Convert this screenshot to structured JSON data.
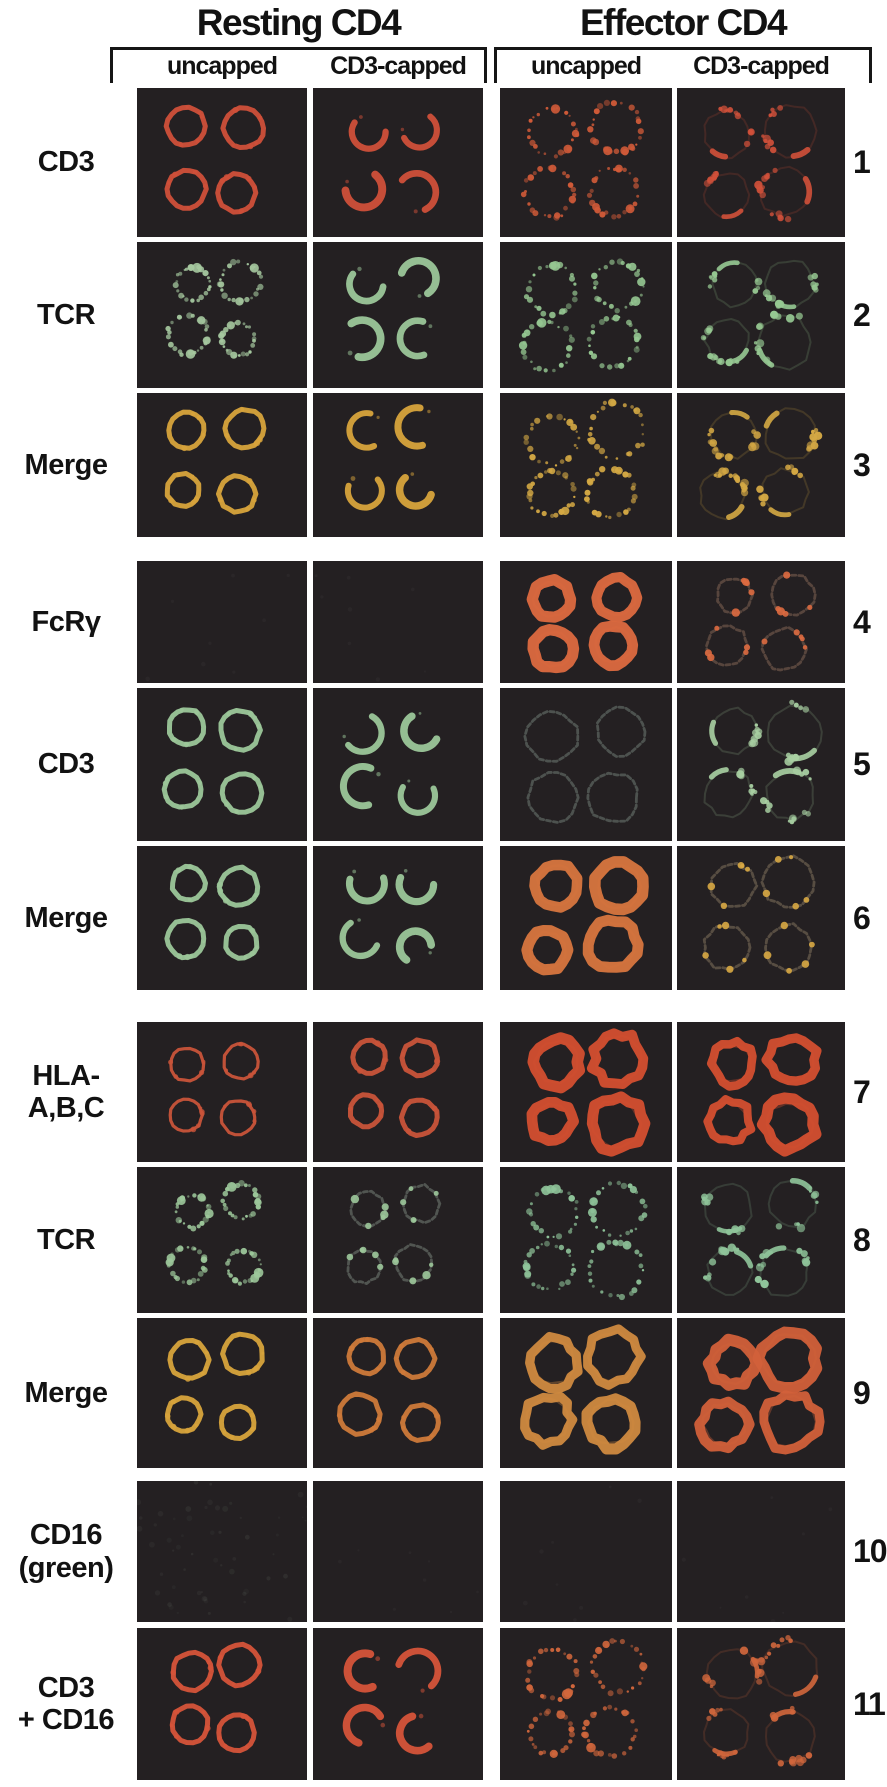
{
  "figure": {
    "groups": [
      {
        "title": "Resting CD4"
      },
      {
        "title": "Effector CD4"
      }
    ],
    "column_headers": [
      "uncapped",
      "CD3-capped",
      "uncapped",
      "CD3-capped"
    ],
    "panel_background": "#242022",
    "channel_colors": {
      "red": "#d0503a",
      "green": "#9cc79a",
      "merge_yellow": "#d8a43c",
      "orange": "#dd6a40"
    },
    "rows": [
      {
        "label": "CD3",
        "number": "1",
        "panels": [
          {
            "pattern": "rings",
            "color": "#d0503a"
          },
          {
            "pattern": "crescents",
            "color": "#d0503a"
          },
          {
            "pattern": "dotted-rings",
            "color": "#d05a38",
            "size": "large"
          },
          {
            "pattern": "patches",
            "color": "#d0503a",
            "size": "large"
          }
        ]
      },
      {
        "label": "TCR",
        "number": "2",
        "panels": [
          {
            "pattern": "dotted-rings",
            "color": "#a6c9a0"
          },
          {
            "pattern": "crescents",
            "color": "#9cc79a"
          },
          {
            "pattern": "dotted-rings",
            "color": "#96c892",
            "size": "large"
          },
          {
            "pattern": "patches",
            "color": "#96c892",
            "size": "large"
          }
        ]
      },
      {
        "label": "Merge",
        "number": "3",
        "panels": [
          {
            "pattern": "rings",
            "color": "#d8a43c"
          },
          {
            "pattern": "crescents",
            "color": "#d8a43c"
          },
          {
            "pattern": "dotted-rings",
            "color": "#d4a844",
            "size": "large"
          },
          {
            "pattern": "patches",
            "color": "#d4a844",
            "size": "large"
          }
        ]
      },
      {
        "label": "FcRγ",
        "number": "4",
        "panels": [
          {
            "pattern": "blank"
          },
          {
            "pattern": "blank"
          },
          {
            "pattern": "thick-rings",
            "color": "#dd6a40",
            "size": "large"
          },
          {
            "pattern": "dim-rings",
            "color": "#8a6a58",
            "accent": "#dd6a40",
            "size": "large"
          }
        ]
      },
      {
        "label": "CD3",
        "number": "5",
        "panels": [
          {
            "pattern": "rings",
            "color": "#9cc79a"
          },
          {
            "pattern": "crescents",
            "color": "#9cc79a"
          },
          {
            "pattern": "dim-rings",
            "color": "#75837b",
            "size": "large"
          },
          {
            "pattern": "patches",
            "color": "#a8cfa2",
            "size": "large"
          }
        ]
      },
      {
        "label": "Merge",
        "number": "6",
        "panels": [
          {
            "pattern": "rings",
            "color": "#9cc79a"
          },
          {
            "pattern": "crescents",
            "color": "#9cc79a"
          },
          {
            "pattern": "thick-rings",
            "color": "#d8763f",
            "size": "large"
          },
          {
            "pattern": "dim-rings",
            "color": "#8a7a62",
            "accent": "#d8a844",
            "size": "large"
          }
        ]
      },
      {
        "label": "HLA-\nA,B,C",
        "number": "7",
        "panels": [
          {
            "pattern": "rings",
            "color": "#c9543a",
            "thin": true
          },
          {
            "pattern": "rings",
            "color": "#c9543a"
          },
          {
            "pattern": "thick-rings",
            "color": "#d44f30",
            "size": "large",
            "irregular": true
          },
          {
            "pattern": "thick-rings",
            "color": "#d44f30",
            "size": "large",
            "irregular": true
          }
        ]
      },
      {
        "label": "TCR",
        "number": "8",
        "panels": [
          {
            "pattern": "dotted-rings",
            "color": "#9cc79a"
          },
          {
            "pattern": "dim-rings",
            "color": "#7d8a80",
            "accent": "#9cc79a"
          },
          {
            "pattern": "dotted-rings",
            "color": "#8fc49a",
            "size": "large"
          },
          {
            "pattern": "patches",
            "color": "#8fc49a",
            "size": "large"
          }
        ]
      },
      {
        "label": "Merge",
        "number": "9",
        "panels": [
          {
            "pattern": "rings",
            "color": "#d8a43c"
          },
          {
            "pattern": "rings",
            "color": "#cf7a3a"
          },
          {
            "pattern": "thick-rings",
            "color": "#d08a40",
            "size": "large",
            "irregular": true
          },
          {
            "pattern": "thick-rings",
            "color": "#d2603a",
            "size": "large",
            "irregular": true
          }
        ]
      },
      {
        "label": "CD16\n(green)",
        "number": "10",
        "panels": [
          {
            "pattern": "noise",
            "color": "#8a9a8a"
          },
          {
            "pattern": "blank"
          },
          {
            "pattern": "blank"
          },
          {
            "pattern": "blank"
          }
        ]
      },
      {
        "label": "CD3\n+ CD16",
        "number": "11",
        "panels": [
          {
            "pattern": "rings",
            "color": "#d6543a"
          },
          {
            "pattern": "crescents",
            "color": "#d6543a"
          },
          {
            "pattern": "dotted-rings",
            "color": "#d0663c",
            "size": "large"
          },
          {
            "pattern": "patches",
            "color": "#d0663c",
            "size": "large"
          }
        ]
      }
    ]
  }
}
